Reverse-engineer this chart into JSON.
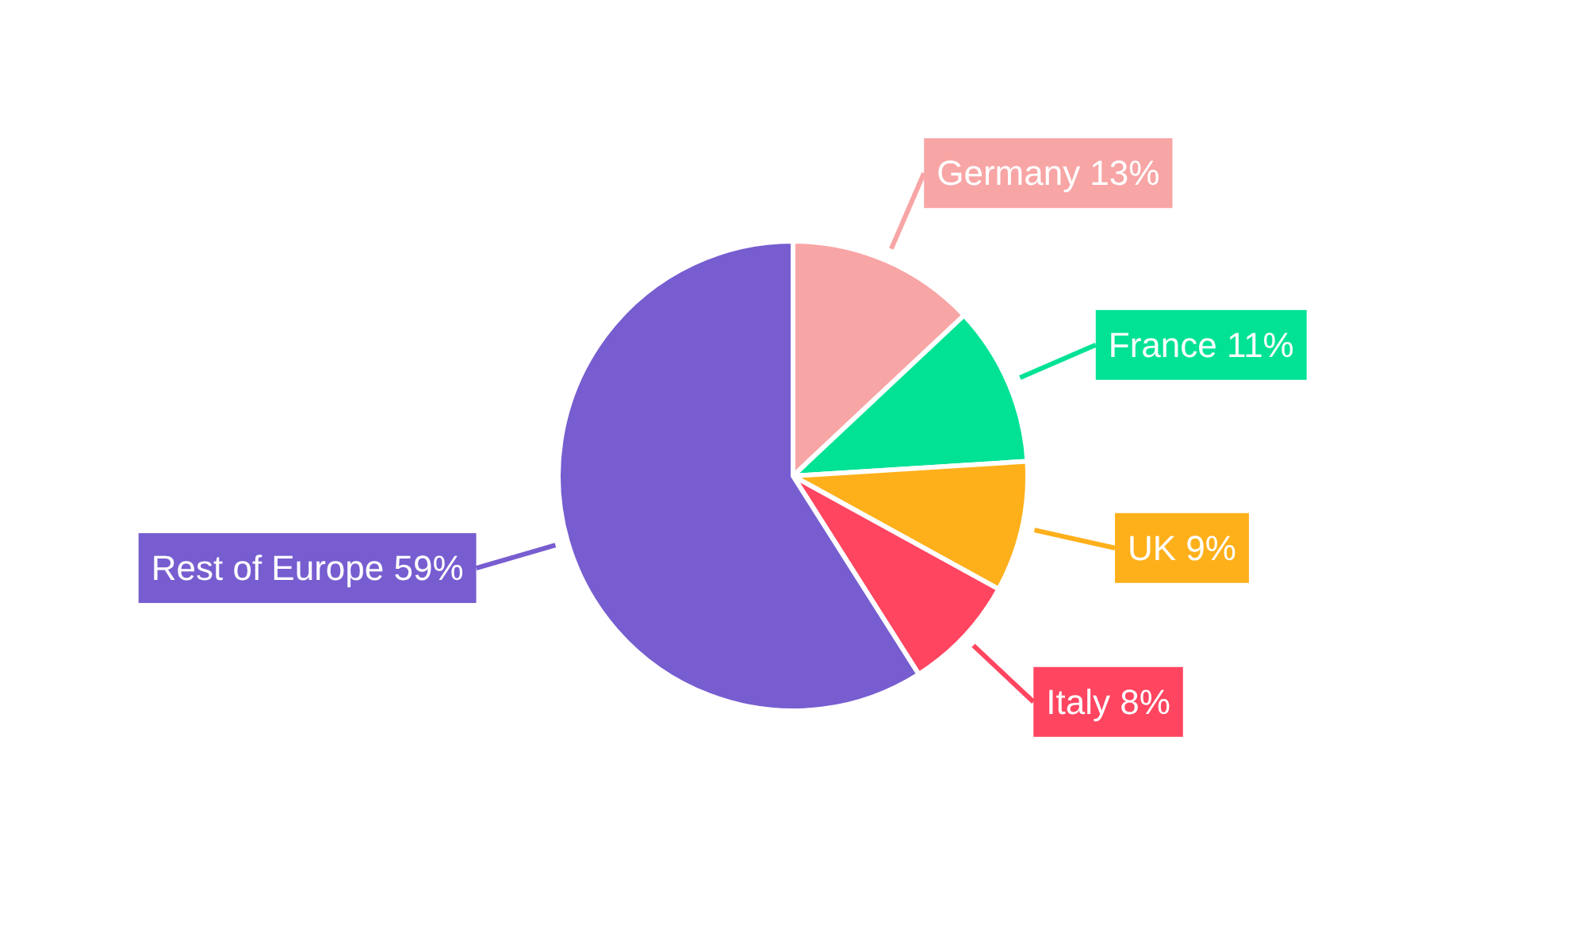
{
  "chart_data": {
    "type": "pie",
    "categories": [
      "Germany",
      "France",
      "UK",
      "Italy",
      "Rest of Europe"
    ],
    "values": [
      13,
      11,
      9,
      8,
      59
    ],
    "value_labels": [
      "13%",
      "11%",
      "9%",
      "8%",
      "59%"
    ],
    "colors": [
      "#f8a5a5",
      "#02e295",
      "#feb01b",
      "#ff4560",
      "#775dd0"
    ],
    "legend": false
  }
}
